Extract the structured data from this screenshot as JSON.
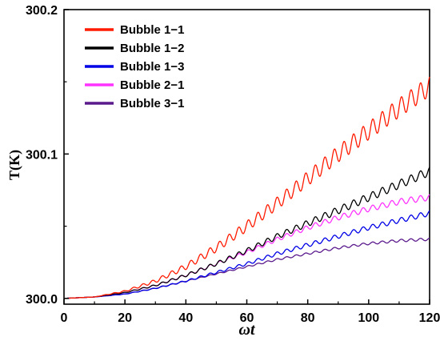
{
  "chart_data": {
    "type": "line",
    "title": "",
    "xlabel": "ωt",
    "ylabel": "T(K)",
    "xlim": [
      0,
      120
    ],
    "ylim": [
      299.996,
      300.2
    ],
    "x_ticks": [
      "0",
      "20",
      "40",
      "60",
      "80",
      "100",
      "120"
    ],
    "y_ticks": [
      "300.0",
      "300.1",
      "300.2"
    ],
    "legend_position": "top-left",
    "grid": false,
    "series": [
      {
        "name": "Bubble 1−1",
        "color": "#ff1a00",
        "x": [
          0,
          10,
          20,
          30,
          40,
          50,
          60,
          70,
          80,
          90,
          100,
          110,
          120
        ],
        "values": [
          300.0,
          300.001,
          300.005,
          300.012,
          300.022,
          300.035,
          300.05,
          300.066,
          300.083,
          300.1,
          300.116,
          300.132,
          300.147
        ],
        "oscillation_amplitude": [
          0,
          0,
          0.0005,
          0.0012,
          0.002,
          0.0028,
          0.0035,
          0.0042,
          0.005,
          0.0056,
          0.006,
          0.0065,
          0.0068
        ]
      },
      {
        "name": "Bubble 1−2",
        "color": "#000000",
        "x": [
          0,
          10,
          20,
          30,
          40,
          50,
          60,
          70,
          80,
          90,
          100,
          110,
          120
        ],
        "values": [
          300.0,
          300.001,
          300.004,
          300.009,
          300.016,
          300.024,
          300.033,
          300.043,
          300.052,
          300.061,
          300.07,
          300.079,
          300.088
        ],
        "oscillation_amplitude": [
          0,
          0,
          0.0003,
          0.0006,
          0.001,
          0.0013,
          0.0016,
          0.0019,
          0.0022,
          0.0025,
          0.0027,
          0.0029,
          0.003
        ]
      },
      {
        "name": "Bubble 1−3",
        "color": "#0000e6",
        "x": [
          0,
          10,
          20,
          30,
          40,
          50,
          60,
          70,
          80,
          90,
          100,
          110,
          120
        ],
        "values": [
          300.0,
          300.001,
          300.003,
          300.007,
          300.012,
          300.018,
          300.024,
          300.031,
          300.037,
          300.043,
          300.049,
          300.054,
          300.059
        ],
        "oscillation_amplitude": [
          0,
          0,
          0.0002,
          0.0004,
          0.0006,
          0.0008,
          0.001,
          0.0012,
          0.0014,
          0.0015,
          0.0016,
          0.0017,
          0.0018
        ]
      },
      {
        "name": "Bubble 2−1",
        "color": "#ff33ff",
        "x": [
          0,
          10,
          20,
          30,
          40,
          50,
          60,
          70,
          80,
          90,
          100,
          110,
          120
        ],
        "values": [
          300.0,
          300.001,
          300.004,
          300.009,
          300.016,
          300.024,
          300.032,
          300.041,
          300.049,
          300.056,
          300.062,
          300.067,
          300.07
        ],
        "oscillation_amplitude": [
          0,
          0,
          0.0002,
          0.0005,
          0.0008,
          0.001,
          0.0012,
          0.0014,
          0.0016,
          0.0018,
          0.0019,
          0.002,
          0.0021
        ]
      },
      {
        "name": "Bubble 3−1",
        "color": "#5a1a8c",
        "x": [
          0,
          10,
          20,
          30,
          40,
          50,
          60,
          70,
          80,
          90,
          100,
          110,
          120
        ],
        "values": [
          300.0,
          300.001,
          300.003,
          300.007,
          300.012,
          300.017,
          300.022,
          300.027,
          300.031,
          300.035,
          300.038,
          300.04,
          300.041
        ],
        "oscillation_amplitude": [
          0,
          0,
          0.0001,
          0.0002,
          0.0003,
          0.0004,
          0.0005,
          0.0006,
          0.0007,
          0.0008,
          0.0008,
          0.0009,
          0.0009
        ]
      }
    ]
  }
}
